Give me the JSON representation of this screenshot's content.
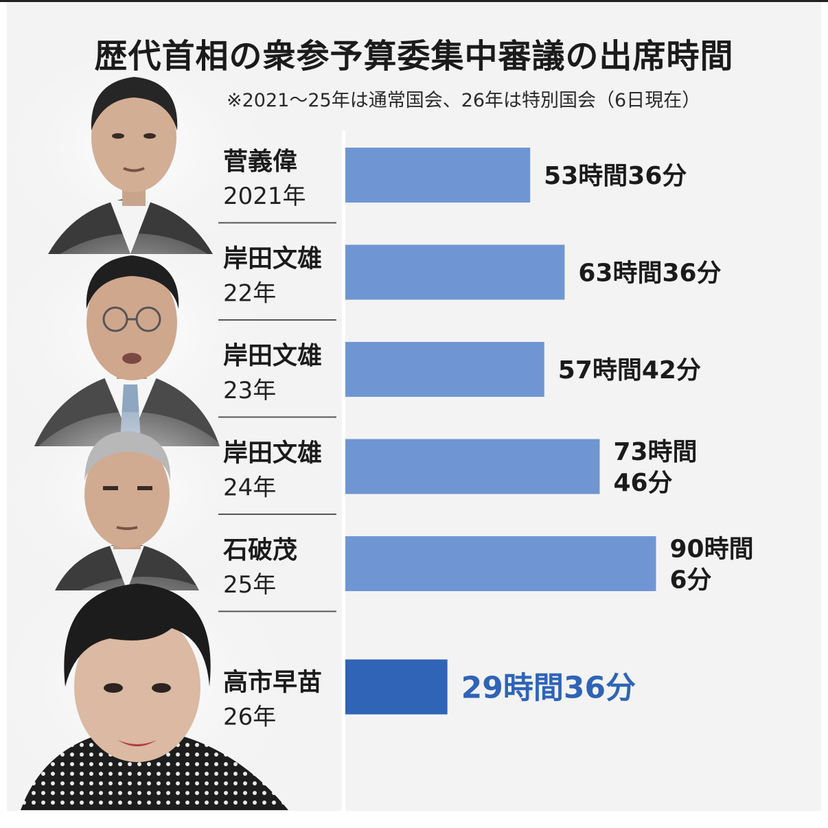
{
  "title": "歴代首相の衆参予算委集中審議の出席時間",
  "subtitle": "※2021～25年は通常国会、26年は特別国会（6日現在）",
  "chart_data": {
    "type": "bar",
    "orientation": "horizontal",
    "categories": [
      {
        "name": "菅義偉",
        "year": "2021年"
      },
      {
        "name": "岸田文雄",
        "year": "22年"
      },
      {
        "name": "岸田文雄",
        "year": "23年"
      },
      {
        "name": "岸田文雄",
        "year": "24年"
      },
      {
        "name": "石破茂",
        "year": "25年"
      },
      {
        "name": "高市早苗",
        "year": "26年"
      }
    ],
    "values_minutes": [
      3216,
      3816,
      3462,
      4426,
      5406,
      1776
    ],
    "value_labels": [
      [
        "53時間36分"
      ],
      [
        "63時間36分"
      ],
      [
        "57時間42分"
      ],
      [
        "73時間",
        "46分"
      ],
      [
        "90時間",
        "6分"
      ],
      [
        "29時間36分"
      ]
    ],
    "highlight_index": 5,
    "colors": {
      "bar": "#6f96d2",
      "bar_highlight": "#2f64b6",
      "label": "#1b1b1b",
      "label_highlight": "#2f64b6"
    }
  },
  "photos": [
    {
      "name": "suga-portrait"
    },
    {
      "name": "kishida-portrait"
    },
    {
      "name": "ishiba-portrait"
    },
    {
      "name": "takaichi-portrait"
    }
  ]
}
